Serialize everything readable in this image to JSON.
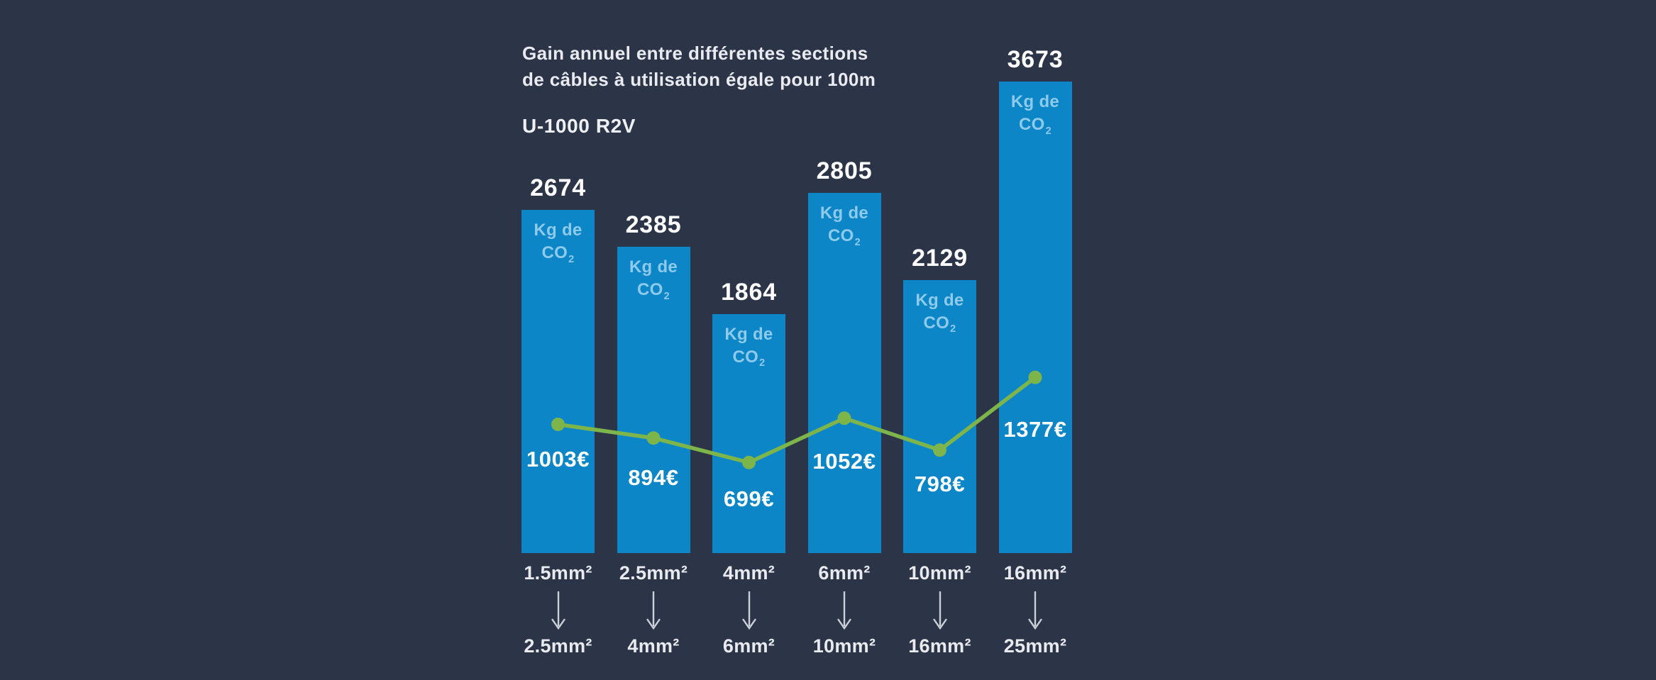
{
  "header": {
    "title_line1": "Gain annuel entre différentes sections",
    "title_line2": "de câbles à utilisation égale pour 100m",
    "subtitle": "U-1000 R2V"
  },
  "chart_data": {
    "type": "bar",
    "title": "Gain annuel entre différentes sections de câbles à utilisation égale pour 100m",
    "subtitle": "U-1000 R2V",
    "categories_from": [
      "1.5mm²",
      "2.5mm²",
      "4mm²",
      "6mm²",
      "10mm²",
      "16mm²"
    ],
    "categories_to": [
      "2.5mm²",
      "4mm²",
      "6mm²",
      "10mm²",
      "16mm²",
      "25mm²"
    ],
    "series": [
      {
        "name": "co2-kg",
        "type": "bar",
        "values": [
          2674,
          2385,
          1864,
          2805,
          2129,
          3673
        ]
      },
      {
        "name": "gain-euro",
        "type": "line",
        "values": [
          1003,
          894,
          699,
          1052,
          798,
          1377
        ]
      }
    ],
    "bar_unit": {
      "line1": "Kg de",
      "line2": "CO",
      "sub": "2"
    },
    "euro_suffix": "€",
    "ylim": [
      0,
      3700
    ],
    "grid": false,
    "legend_position": "none",
    "colors": {
      "background": "#2c3448",
      "bar": "#0d86c8",
      "line": "#7db54a",
      "bar_unit_text": "#8ecaea",
      "value_text": "#ffffff",
      "arrow": "#ccd0d9"
    }
  }
}
